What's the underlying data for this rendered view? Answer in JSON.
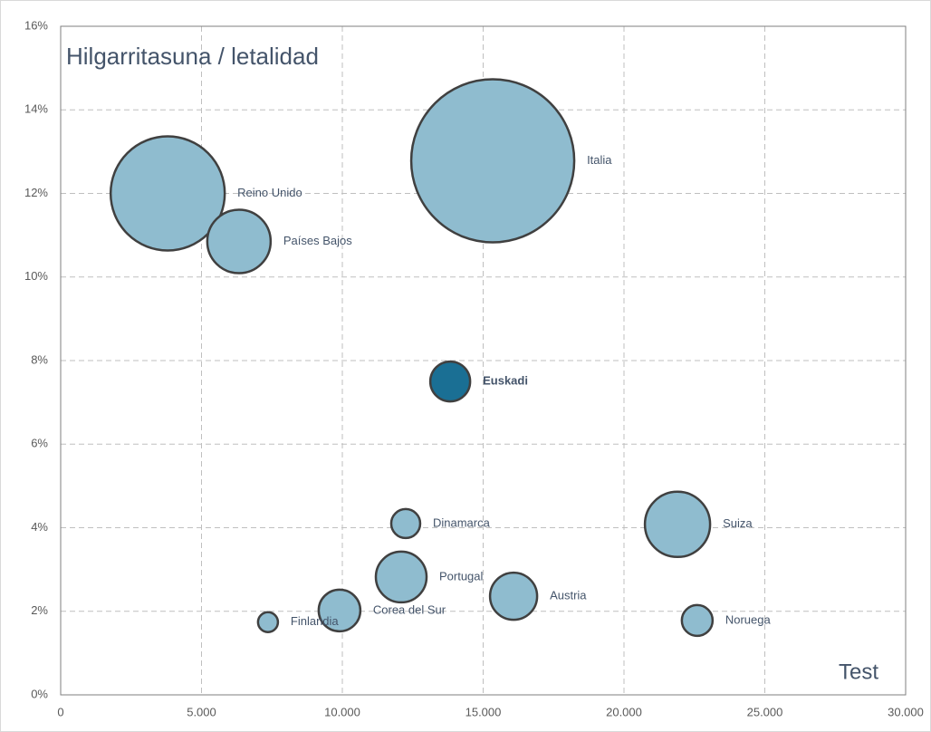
{
  "chart_data": {
    "type": "bubble",
    "title": "Hilgarritasuna / letalidad",
    "x_label": "Test",
    "color": "#8fbccf",
    "grid": true,
    "xlim": [
      0,
      30000
    ],
    "xticks": [
      0,
      {
        "value": 5000,
        "label": "5.000"
      },
      {
        "value": 10000,
        "label": "10.000"
      },
      {
        "value": 15000,
        "label": "15.000"
      },
      {
        "value": 20000,
        "label": "20.000"
      },
      {
        "value": 25000,
        "label": "25.000"
      },
      {
        "value": 30000,
        "label": "30.000"
      }
    ],
    "ylim": [
      0,
      16
    ],
    "yticks": [
      {
        "value": 0,
        "label": "0%"
      },
      {
        "value": 2,
        "label": "2%"
      },
      {
        "value": 4,
        "label": "4%"
      },
      {
        "value": 6,
        "label": "6%"
      },
      {
        "value": 8,
        "label": "8%"
      },
      {
        "value": 10,
        "label": "10%"
      },
      {
        "value": 12,
        "label": "12%"
      },
      {
        "value": 14,
        "label": "14%"
      },
      {
        "value": 16,
        "label": "16%"
      }
    ],
    "names": [
      "Reino Unido",
      "Países Bajos",
      "Italia",
      "Euskadi",
      "Dinamarca",
      "Suiza",
      "Portugal",
      "Austria",
      "Corea del Sur",
      "Finlandia",
      "Noruega"
    ],
    "x": [
      3800,
      6330,
      15340,
      13830,
      12250,
      21900,
      12090,
      16080,
      9900,
      7360,
      22600
    ],
    "values": [
      12.0,
      10.85,
      12.78,
      7.5,
      4.1,
      4.08,
      2.82,
      2.36,
      2.02,
      1.74,
      1.78
    ],
    "sizes": [
      3969,
      1225,
      8100,
      484,
      256,
      1296,
      784,
      676,
      529,
      121,
      289
    ],
    "colors": [
      "#8fbccf",
      "#8fbccf",
      "#8fbccf",
      "#1a6f94",
      "#8fbccf",
      "#8fbccf",
      "#8fbccf",
      "#8fbccf",
      "#8fbccf",
      "#8fbccf",
      "#8fbccf"
    ]
  }
}
